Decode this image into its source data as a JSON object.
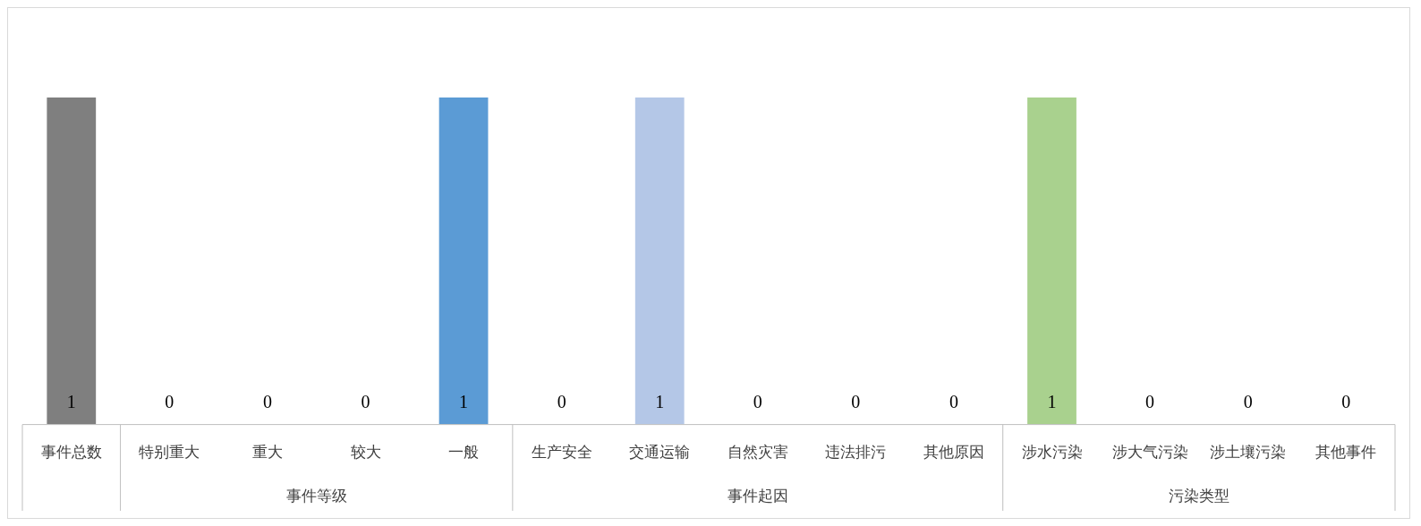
{
  "chart_data": {
    "type": "bar",
    "data_labels": true,
    "legend": false,
    "tick_labels": "x",
    "categories": [
      "事件总数",
      "特别重大",
      "重大",
      "较大",
      "一般",
      "生产安全",
      "交通运输",
      "自然灾害",
      "违法排污",
      "其他原因",
      "涉水污染",
      "涉大气污染",
      "涉土壤污染",
      "其他事件"
    ],
    "values": [
      1,
      0,
      0,
      0,
      1,
      0,
      1,
      0,
      0,
      0,
      1,
      0,
      0,
      0
    ],
    "colors": [
      "#7f7f7f",
      "#5b9bd5",
      "#5b9bd5",
      "#5b9bd5",
      "#5b9bd5",
      "#b4c7e7",
      "#b4c7e7",
      "#b4c7e7",
      "#b4c7e7",
      "#b4c7e7",
      "#a9d18e",
      "#a9d18e",
      "#a9d18e",
      "#a9d18e"
    ],
    "annotations": [
      "事件等级",
      "事件起因",
      "污染类型"
    ]
  }
}
